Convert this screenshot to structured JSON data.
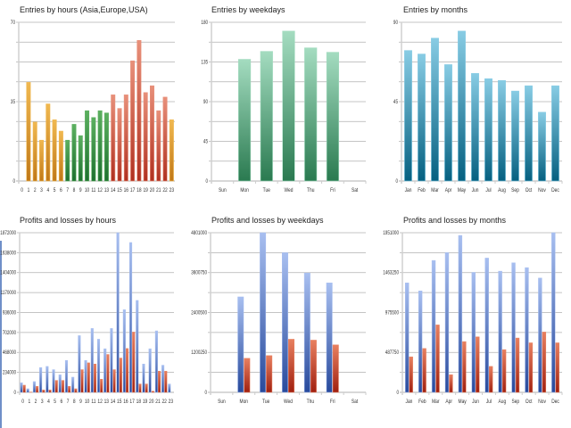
{
  "colors": {
    "asia": [
      "#f0b850",
      "#c07818"
    ],
    "europe": [
      "#5cb060",
      "#1e7030"
    ],
    "usa": [
      "#e8907a",
      "#b03020"
    ],
    "weekday_entries": [
      "#a4dcc0",
      "#2a7a50"
    ],
    "month_entries": [
      "#88cce4",
      "#066080"
    ],
    "profit": [
      "#a8bff0",
      "#284a9c"
    ],
    "loss": [
      "#e88060",
      "#a02010"
    ],
    "grid": "#b0b0b0"
  },
  "chart_data": [
    {
      "type": "bar",
      "title": "Entries by hours (Asia,Europe,USA)",
      "categories": [
        "0",
        "1",
        "2",
        "3",
        "4",
        "5",
        "6",
        "7",
        "8",
        "9",
        "10",
        "11",
        "12",
        "13",
        "14",
        "15",
        "16",
        "17",
        "18",
        "19",
        "20",
        "21",
        "22",
        "23"
      ],
      "values": [
        0,
        43.5,
        26,
        18,
        34,
        27,
        22,
        18,
        25,
        20,
        31,
        28,
        31,
        30,
        38,
        32,
        38,
        53,
        62,
        39,
        42,
        31,
        37,
        27
      ],
      "bar_groups": [
        "asia",
        "asia",
        "asia",
        "asia",
        "asia",
        "asia",
        "asia",
        "europe",
        "europe",
        "europe",
        "europe",
        "europe",
        "europe",
        "europe",
        "usa",
        "usa",
        "usa",
        "usa",
        "usa",
        "usa",
        "usa",
        "usa",
        "usa",
        "asia"
      ],
      "ylim": [
        0,
        70
      ],
      "yticks": [
        "0",
        "35",
        "70"
      ],
      "grid": true
    },
    {
      "type": "bar",
      "title": "Entries by weekdays",
      "categories": [
        "Sun",
        "Mon",
        "Tue",
        "Wed",
        "Thu",
        "Fri",
        "Sat"
      ],
      "values": [
        0,
        138,
        147,
        170,
        151,
        146,
        0
      ],
      "color": "weekday_entries",
      "ylim": [
        0,
        180
      ],
      "yticks": [
        "0",
        "45",
        "90",
        "135",
        "180"
      ],
      "grid": true
    },
    {
      "type": "bar",
      "title": "Entries by months",
      "categories": [
        "Jan",
        "Feb",
        "Mar",
        "Apr",
        "May",
        "Jun",
        "Jul",
        "Aug",
        "Sep",
        "Oct",
        "Nov",
        "Dec"
      ],
      "values": [
        74,
        72,
        81,
        66,
        85,
        61,
        58,
        57,
        51,
        54,
        39,
        54
      ],
      "color": "month_entries",
      "ylim": [
        0,
        90
      ],
      "yticks": [
        "0",
        "45",
        "90"
      ],
      "grid": true
    },
    {
      "type": "bar",
      "title": "Profits and losses by hours",
      "categories": [
        "0",
        "1",
        "2",
        "3",
        "4",
        "5",
        "6",
        "7",
        "8",
        "9",
        "10",
        "11",
        "12",
        "13",
        "14",
        "15",
        "16",
        "17",
        "18",
        "19",
        "20",
        "21",
        "22",
        "23"
      ],
      "series": [
        {
          "color": "profit",
          "values": [
            112000,
            42000,
            126000,
            290000,
            304000,
            266000,
            206000,
            374000,
            178000,
            665000,
            374000,
            749000,
            623000,
            511000,
            749000,
            1872000,
            969000,
            1757000,
            1078000,
            332000,
            511000,
            721000,
            318000,
            98000
          ]
        },
        {
          "color": "loss",
          "values": [
            84000,
            3500,
            70000,
            28000,
            28000,
            140000,
            140000,
            70000,
            42000,
            266000,
            346000,
            332000,
            154000,
            444000,
            266000,
            402000,
            514000,
            707000,
            98000,
            98000,
            14000,
            248000,
            248000,
            0
          ]
        }
      ],
      "ylim": [
        0,
        1872000
      ],
      "yticks": [
        "0",
        "234000",
        "468000",
        "702000",
        "936000",
        "1170000",
        "1404000",
        "1638000",
        "1872000"
      ],
      "grid": true
    },
    {
      "type": "bar",
      "title": "Profits and losses by weekdays",
      "categories": [
        "Sun",
        "Mon",
        "Tue",
        "Wed",
        "Thu",
        "Fri",
        "Sat"
      ],
      "series": [
        {
          "color": "profit",
          "values": [
            0,
            2871000,
            4801000,
            4199000,
            3589000,
            3293000,
            0
          ]
        },
        {
          "color": "loss",
          "values": [
            0,
            1023000,
            1104000,
            1597000,
            1570000,
            1427000,
            0
          ]
        }
      ],
      "ylim": [
        0,
        4801000
      ],
      "yticks": [
        "0",
        "1200250",
        "2400500",
        "3600750",
        "4801000"
      ],
      "grid": true
    },
    {
      "type": "bar",
      "title": "Profits and losses by months",
      "categories": [
        "Jan",
        "Feb",
        "Mar",
        "Apr",
        "May",
        "Jun",
        "Jul",
        "Aug",
        "Sep",
        "Oct",
        "Nov",
        "Dec"
      ],
      "series": [
        {
          "color": "profit",
          "values": [
            1338000,
            1240000,
            1612000,
            1707000,
            1918000,
            1466000,
            1641000,
            1481000,
            1583000,
            1524000,
            1397000,
            1951000
          ]
        },
        {
          "color": "loss",
          "values": [
            434000,
            536000,
            824000,
            215000,
            620000,
            678000,
            317000,
            522000,
            664000,
            605000,
            737000,
            605000
          ]
        }
      ],
      "ylim": [
        0,
        1951000
      ],
      "yticks": [
        "0",
        "487750",
        "975500",
        "1463250",
        "1951000"
      ],
      "grid": true
    }
  ]
}
